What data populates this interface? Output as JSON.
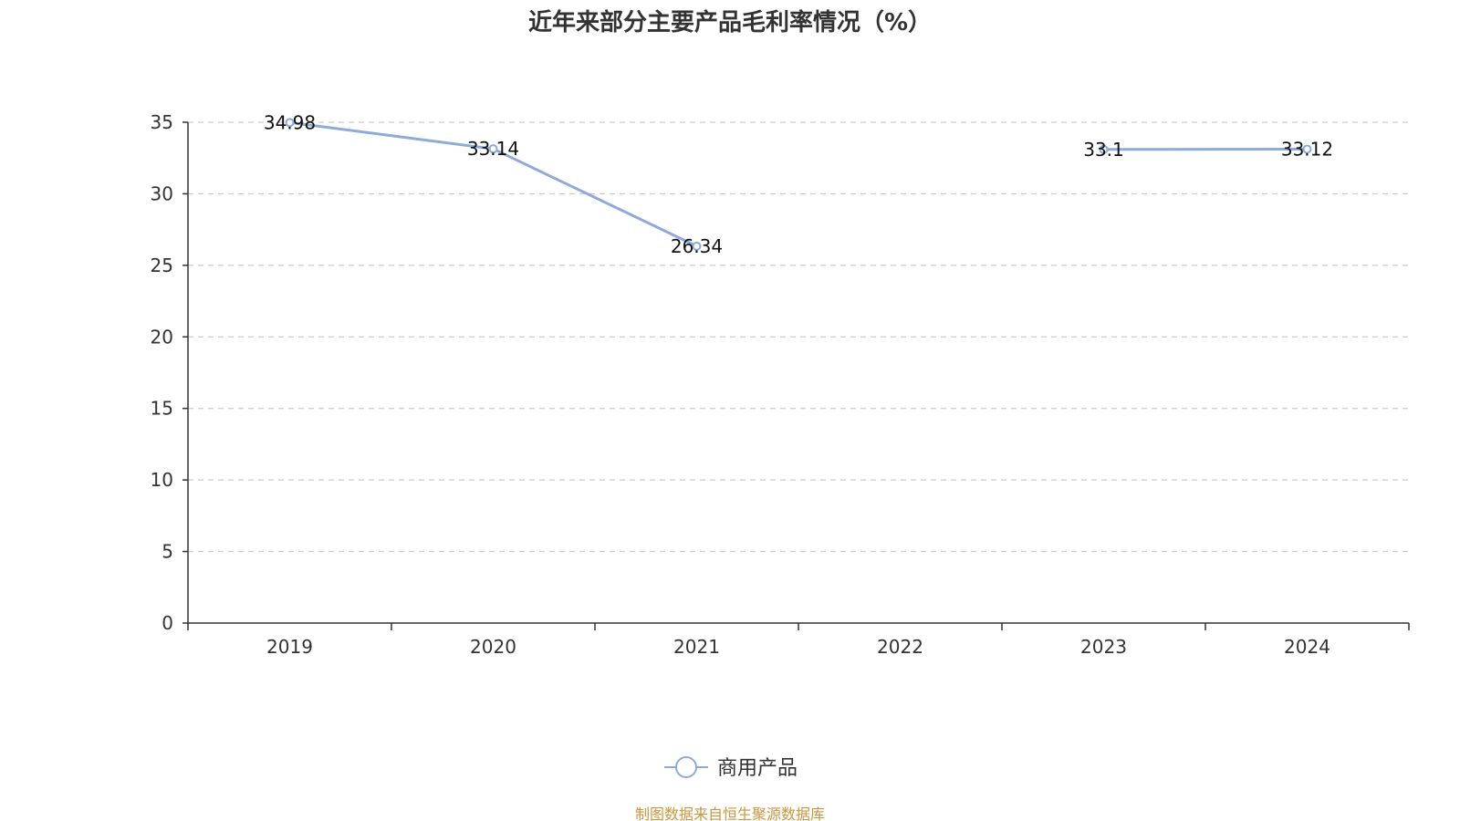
{
  "chart_data": {
    "type": "line",
    "title": "近年来部分主要产品毛利率情况（%）",
    "categories": [
      "2019",
      "2020",
      "2021",
      "2022",
      "2023",
      "2024"
    ],
    "series": [
      {
        "name": "商用产品",
        "values": [
          34.98,
          33.14,
          26.34,
          null,
          33.1,
          33.12
        ],
        "labels": [
          "34.98",
          "33.14",
          "26.34",
          "",
          "33.1",
          "33.12"
        ]
      }
    ],
    "ylim": [
      0,
      35
    ],
    "yticks": [
      "0",
      "5",
      "10",
      "15",
      "20",
      "25",
      "30",
      "35"
    ],
    "xlabel": "",
    "ylabel": "",
    "grid": true,
    "legend_position": "bottom-center"
  },
  "colors": {
    "series": "#8eaadb",
    "axis": "#333333",
    "grid": "#cccccc",
    "source": "#c8963e"
  },
  "footer": {
    "source": "制图数据来自恒生聚源数据库"
  }
}
